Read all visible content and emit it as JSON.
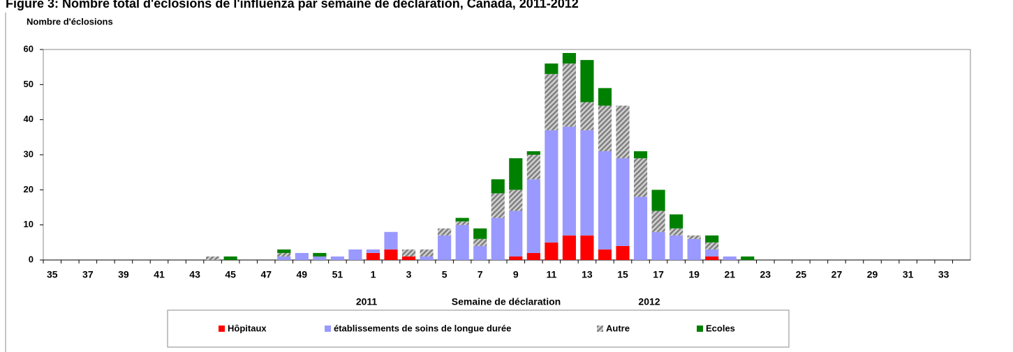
{
  "chart_data": {
    "type": "stacked_bar",
    "title": "Figure 3: Nombre total d'éclosions de l'influenza par semaine de déclaration, Canada, 2011-2012",
    "y_label": "Nombre d'éclosions",
    "x_label": "Semaine de déclaration",
    "annotations": [
      "2011",
      "2012"
    ],
    "categories": [
      "35",
      null,
      "37",
      null,
      "39",
      null,
      "41",
      null,
      "43",
      null,
      "45",
      null,
      "47",
      null,
      "49",
      null,
      "51",
      null,
      "1",
      null,
      "3",
      null,
      "5",
      null,
      "7",
      null,
      "9",
      null,
      "11",
      null,
      "13",
      null,
      "15",
      null,
      "17",
      null,
      "19",
      null,
      "21",
      null,
      "23",
      null,
      "25",
      null,
      "27",
      null,
      "29",
      null,
      "31",
      null,
      "33",
      null
    ],
    "series": [
      {
        "name": "Hôpitaux",
        "color": "#ff0000",
        "values": [
          0,
          0,
          0,
          0,
          0,
          0,
          0,
          0,
          0,
          0,
          0,
          0,
          0,
          0,
          0,
          0,
          0,
          0,
          2,
          3,
          1,
          0,
          0,
          0,
          0,
          0,
          1,
          2,
          5,
          7,
          7,
          3,
          4,
          0,
          0,
          0,
          0,
          1,
          0,
          0,
          0,
          0,
          0,
          0,
          0,
          0,
          0,
          0,
          0,
          0,
          0,
          0
        ]
      },
      {
        "name": "établissements de soins de longue durée",
        "color": "#9999ff",
        "values": [
          0,
          0,
          0,
          0,
          0,
          0,
          0,
          0,
          0,
          0,
          0,
          0,
          0,
          1,
          2,
          1,
          1,
          3,
          1,
          5,
          0,
          1,
          7,
          10,
          4,
          12,
          13,
          21,
          32,
          31,
          30,
          28,
          25,
          18,
          8,
          7,
          6,
          2,
          1,
          0,
          0,
          0,
          0,
          0,
          0,
          0,
          0,
          0,
          0,
          0,
          0,
          0
        ]
      },
      {
        "name": "Autre",
        "color": "#a6a6a6",
        "pattern": "hatch",
        "values": [
          0,
          0,
          0,
          0,
          0,
          0,
          0,
          0,
          0,
          1,
          0,
          0,
          0,
          1,
          0,
          0,
          0,
          0,
          0,
          0,
          2,
          2,
          2,
          1,
          2,
          7,
          6,
          7,
          16,
          18,
          8,
          13,
          15,
          11,
          6,
          2,
          1,
          2,
          0,
          0,
          0,
          0,
          0,
          0,
          0,
          0,
          0,
          0,
          0,
          0,
          0,
          0
        ]
      },
      {
        "name": "Ecoles",
        "color": "#008000",
        "values": [
          0,
          0,
          0,
          0,
          0,
          0,
          0,
          0,
          0,
          0,
          1,
          0,
          0,
          1,
          0,
          1,
          0,
          0,
          0,
          0,
          0,
          0,
          0,
          1,
          3,
          4,
          9,
          1,
          3,
          3,
          12,
          5,
          0,
          2,
          6,
          4,
          0,
          2,
          0,
          1,
          0,
          0,
          0,
          0,
          0,
          0,
          0,
          0,
          0,
          0,
          0,
          0
        ]
      }
    ],
    "ylim": [
      0,
      60
    ],
    "yticks": [
      0,
      10,
      20,
      30,
      40,
      50,
      60
    ],
    "grid": false
  }
}
